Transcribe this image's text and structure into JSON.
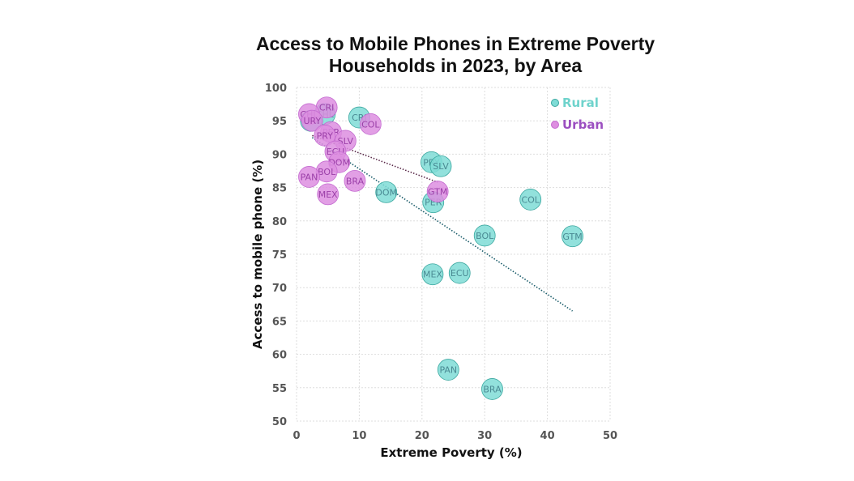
{
  "chart_data": {
    "type": "scatter",
    "title": "Access to Mobile Phones in Extreme Poverty Households in 2023, by Area",
    "title_lines": [
      "Access to Mobile Phones in Extreme Poverty",
      "Households in 2023, by Area"
    ],
    "xlabel": "Extreme Poverty (%)",
    "ylabel": "Access to mobile phone (%)",
    "xlim": [
      0,
      50
    ],
    "ylim": [
      50,
      100
    ],
    "x_ticks": [
      0,
      10,
      20,
      30,
      40,
      50
    ],
    "y_ticks": [
      50,
      55,
      60,
      65,
      70,
      75,
      80,
      85,
      90,
      95,
      100
    ],
    "grid": true,
    "legend_position": "top-right",
    "series": [
      {
        "name": "Rural",
        "color": "#7fdcd6",
        "edge_color": "#3aa79f",
        "label_color": "#4a8a93",
        "legend_color": "#6fd3cc",
        "trendline_color": "#1a5c6a",
        "trendline": {
          "x": [
            2.5,
            44
          ],
          "y": [
            92.5,
            66.5
          ]
        },
        "points": [
          {
            "label": "CHL",
            "x": 4.5,
            "y": 96.0
          },
          {
            "label": "URY",
            "x": 2.3,
            "y": 95.0
          },
          {
            "label": "CRI",
            "x": 10.0,
            "y": 95.5
          },
          {
            "label": "PRY",
            "x": 21.5,
            "y": 88.8
          },
          {
            "label": "SLV",
            "x": 23.0,
            "y": 88.2
          },
          {
            "label": "DOM",
            "x": 14.3,
            "y": 84.3
          },
          {
            "label": "PER",
            "x": 21.8,
            "y": 82.8
          },
          {
            "label": "COL",
            "x": 37.3,
            "y": 83.2
          },
          {
            "label": "BOL",
            "x": 30.0,
            "y": 77.8
          },
          {
            "label": "GTM",
            "x": 44.0,
            "y": 77.7
          },
          {
            "label": "MEX",
            "x": 21.7,
            "y": 72.0
          },
          {
            "label": "ECU",
            "x": 26.0,
            "y": 72.2
          },
          {
            "label": "PAN",
            "x": 24.2,
            "y": 57.7
          },
          {
            "label": "BRA",
            "x": 31.2,
            "y": 54.8
          }
        ]
      },
      {
        "name": "Urban",
        "color": "#dd8ee0",
        "edge_color": "#c46ad0",
        "label_color": "#9b3fa8",
        "legend_color": "#9b4fc0",
        "trendline_color": "#5a2a4a",
        "trendline": {
          "x": [
            2.5,
            22.5
          ],
          "y": [
            92.8,
            85.8
          ]
        },
        "points": [
          {
            "label": "CRI",
            "x": 4.8,
            "y": 97.0
          },
          {
            "label": "CHL",
            "x": 2.0,
            "y": 96.0
          },
          {
            "label": "URY",
            "x": 2.5,
            "y": 95.0
          },
          {
            "label": "COL",
            "x": 11.8,
            "y": 94.5
          },
          {
            "label": "PER",
            "x": 5.5,
            "y": 93.3
          },
          {
            "label": "PRY",
            "x": 4.5,
            "y": 92.8
          },
          {
            "label": "SLV",
            "x": 7.8,
            "y": 92.0
          },
          {
            "label": "ECU",
            "x": 6.2,
            "y": 90.4
          },
          {
            "label": "DOM",
            "x": 6.8,
            "y": 88.8
          },
          {
            "label": "BOL",
            "x": 4.8,
            "y": 87.4
          },
          {
            "label": "PAN",
            "x": 2.0,
            "y": 86.6
          },
          {
            "label": "BRA",
            "x": 9.3,
            "y": 86.0
          },
          {
            "label": "MEX",
            "x": 5.0,
            "y": 84.0
          },
          {
            "label": "GTM",
            "x": 22.5,
            "y": 84.4
          }
        ]
      }
    ]
  }
}
